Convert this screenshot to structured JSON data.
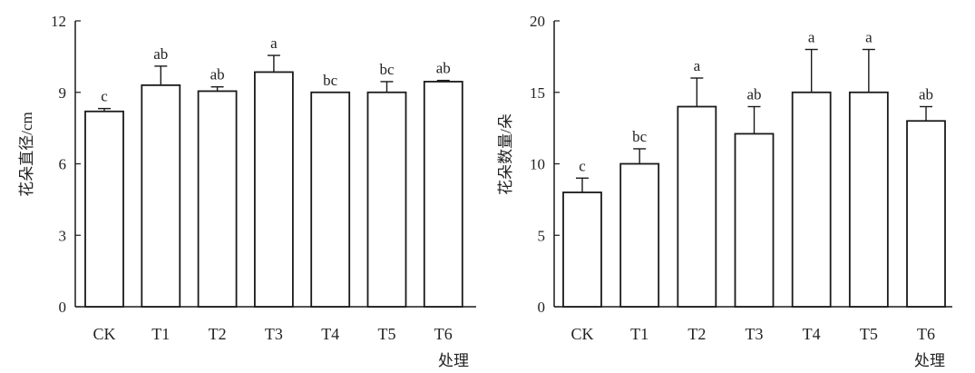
{
  "chart_data": [
    {
      "type": "bar",
      "categories": [
        "CK",
        "T1",
        "T2",
        "T3",
        "T4",
        "T5",
        "T6"
      ],
      "values": [
        8.2,
        9.3,
        9.05,
        9.85,
        9.0,
        9.0,
        9.45
      ],
      "errors": [
        0.12,
        0.8,
        0.18,
        0.7,
        0.0,
        0.45,
        0.05
      ],
      "letters": [
        "c",
        "ab",
        "ab",
        "a",
        "bc",
        "bc",
        "ab"
      ],
      "title": "",
      "xlabel": "处理",
      "ylabel": "花朵直径/cm",
      "ylim": [
        0,
        12
      ],
      "yticks": [
        0,
        3,
        6,
        9,
        12
      ],
      "grid": false
    },
    {
      "type": "bar",
      "categories": [
        "CK",
        "T1",
        "T2",
        "T3",
        "T4",
        "T5",
        "T6"
      ],
      "values": [
        8,
        10,
        14,
        12.1,
        15,
        15,
        13
      ],
      "errors": [
        1.0,
        1.05,
        2.0,
        1.9,
        3.0,
        3.0,
        1.0
      ],
      "letters": [
        "c",
        "bc",
        "a",
        "ab",
        "a",
        "a",
        "ab"
      ],
      "title": "",
      "xlabel": "处理",
      "ylabel": "花朵数量/朵",
      "ylim": [
        0,
        20
      ],
      "yticks": [
        0,
        5,
        10,
        15,
        20
      ],
      "grid": false
    }
  ]
}
